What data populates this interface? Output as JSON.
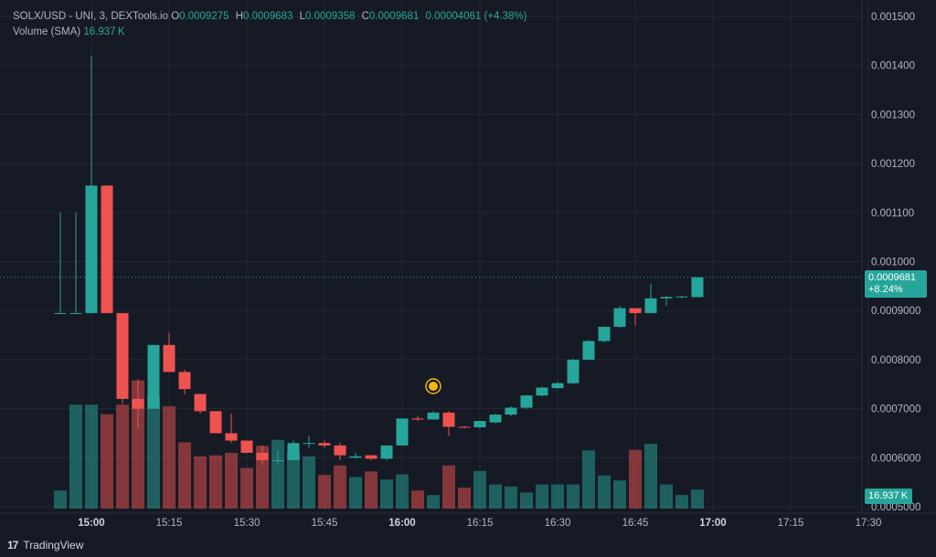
{
  "legend": {
    "symbol": "SOLX/USD - UNI, 3, DEXTools.io",
    "o_key": "O",
    "o": "0.0009275",
    "h_key": "H",
    "h": "0.0009683",
    "l_key": "L",
    "l": "0.0009358",
    "c_key": "C",
    "c": "0.0009681",
    "change": "0.00004061 (+4.38%)",
    "volume_label": "Volume (SMA)",
    "volume_value": "16.937 K"
  },
  "price_badge": {
    "price": "0.0009681",
    "change": "+8.24%"
  },
  "volume_badge": "16.937 K",
  "footer": {
    "brand": "TradingView"
  },
  "colors": {
    "up": "#26a69a",
    "down": "#ef5350",
    "background": "#161a25",
    "grid": "#242832",
    "text": "#b2b5be"
  },
  "chart_data": {
    "type": "candlestick",
    "title": "SOLX/USD - UNI, 3, DEXTools.io",
    "interval_minutes": 3,
    "y_ticks": [
      "0.0005000",
      "0.0006000",
      "0.0007000",
      "0.0008000",
      "0.0009000",
      "0.001000",
      "0.001100",
      "0.001200",
      "0.001300",
      "0.001400",
      "0.001500"
    ],
    "ylim": [
      0.0005,
      0.00152
    ],
    "x_ticks": [
      "15:00",
      "15:15",
      "15:30",
      "15:45",
      "16:00",
      "16:15",
      "16:30",
      "16:45",
      "17:00",
      "17:15",
      "17:30"
    ],
    "x_ticks_bold": [
      "15:00",
      "16:00",
      "17:00"
    ],
    "x_start_time": "14:54",
    "last_price": 0.0009681,
    "candles": [
      {
        "t": "14:54",
        "o": 0.000895,
        "h": 0.0011,
        "l": 0.000895,
        "c": 0.000895,
        "v": 3.6
      },
      {
        "t": "14:57",
        "o": 0.000895,
        "h": 0.0011,
        "l": 0.000895,
        "c": 0.000895,
        "v": 20.7
      },
      {
        "t": "15:00",
        "o": 0.000895,
        "h": 0.00142,
        "l": 0.000895,
        "c": 0.001155,
        "v": 20.7
      },
      {
        "t": "15:03",
        "o": 0.001155,
        "h": 0.001155,
        "l": 0.000895,
        "c": 0.000895,
        "v": 18.8
      },
      {
        "t": "15:06",
        "o": 0.000895,
        "h": 0.000895,
        "l": 0.00071,
        "c": 0.00072,
        "v": 20.7
      },
      {
        "t": "15:09",
        "o": 0.00072,
        "h": 0.00076,
        "l": 0.00066,
        "c": 0.0007,
        "v": 25.5
      },
      {
        "t": "15:12",
        "o": 0.0007,
        "h": 0.00083,
        "l": 0.0007,
        "c": 0.00083,
        "v": 22.4
      },
      {
        "t": "15:15",
        "o": 0.00083,
        "h": 0.000855,
        "l": 0.000775,
        "c": 0.000775,
        "v": 20.4
      },
      {
        "t": "15:18",
        "o": 0.000775,
        "h": 0.00078,
        "l": 0.00073,
        "c": 0.00074,
        "v": 13.2
      },
      {
        "t": "15:21",
        "o": 0.00073,
        "h": 0.00073,
        "l": 0.00069,
        "c": 0.000695,
        "v": 10.4
      },
      {
        "t": "15:24",
        "o": 0.000695,
        "h": 0.000695,
        "l": 0.00065,
        "c": 0.00065,
        "v": 10.6
      },
      {
        "t": "15:27",
        "o": 0.00065,
        "h": 0.00069,
        "l": 0.00063,
        "c": 0.000635,
        "v": 11.1
      },
      {
        "t": "15:30",
        "o": 0.000635,
        "h": 0.000635,
        "l": 0.00061,
        "c": 0.00061,
        "v": 8.1
      },
      {
        "t": "15:33",
        "o": 0.00061,
        "h": 0.000625,
        "l": 0.000585,
        "c": 0.000595,
        "v": 12.5
      },
      {
        "t": "15:36",
        "o": 0.000595,
        "h": 0.000615,
        "l": 0.000585,
        "c": 0.000595,
        "v": 13.7
      },
      {
        "t": "15:39",
        "o": 0.000595,
        "h": 0.000635,
        "l": 0.000595,
        "c": 0.00063,
        "v": 11.4
      },
      {
        "t": "15:42",
        "o": 0.00063,
        "h": 0.000645,
        "l": 0.00062,
        "c": 0.00063,
        "v": 10.4
      },
      {
        "t": "15:45",
        "o": 0.00063,
        "h": 0.000635,
        "l": 0.00062,
        "c": 0.000625,
        "v": 6.7
      },
      {
        "t": "15:48",
        "o": 0.000625,
        "h": 0.00063,
        "l": 0.000595,
        "c": 0.000605,
        "v": 8.6
      },
      {
        "t": "15:51",
        "o": 0.0006,
        "h": 0.00061,
        "l": 0.000598,
        "c": 0.000603,
        "v": 6.3
      },
      {
        "t": "15:54",
        "o": 0.000605,
        "h": 0.000605,
        "l": 0.000595,
        "c": 0.000598,
        "v": 7.4
      },
      {
        "t": "15:57",
        "o": 0.000598,
        "h": 0.000625,
        "l": 0.000595,
        "c": 0.000625,
        "v": 5.8
      },
      {
        "t": "16:00",
        "o": 0.000625,
        "h": 0.00068,
        "l": 0.000625,
        "c": 0.00068,
        "v": 6.8
      },
      {
        "t": "16:03",
        "o": 0.00068,
        "h": 0.000685,
        "l": 0.000675,
        "c": 0.000678,
        "v": 3.6
      },
      {
        "t": "16:06",
        "o": 0.000678,
        "h": 0.000695,
        "l": 0.000678,
        "c": 0.000692,
        "v": 2.7
      },
      {
        "t": "16:09",
        "o": 0.000692,
        "h": 0.000695,
        "l": 0.000645,
        "c": 0.000663,
        "v": 8.6
      },
      {
        "t": "16:12",
        "o": 0.000663,
        "h": 0.000665,
        "l": 0.00066,
        "c": 0.000662,
        "v": 4.2
      },
      {
        "t": "16:15",
        "o": 0.000662,
        "h": 0.000675,
        "l": 0.00066,
        "c": 0.000675,
        "v": 7.5
      },
      {
        "t": "16:18",
        "o": 0.000672,
        "h": 0.00069,
        "l": 0.00067,
        "c": 0.000688,
        "v": 4.8
      },
      {
        "t": "16:21",
        "o": 0.000688,
        "h": 0.000705,
        "l": 0.000685,
        "c": 0.000702,
        "v": 4.4
      },
      {
        "t": "16:24",
        "o": 0.000702,
        "h": 0.000728,
        "l": 0.0007,
        "c": 0.000727,
        "v": 3.2
      },
      {
        "t": "16:27",
        "o": 0.000727,
        "h": 0.000745,
        "l": 0.000725,
        "c": 0.000743,
        "v": 4.8
      },
      {
        "t": "16:30",
        "o": 0.000742,
        "h": 0.000755,
        "l": 0.00074,
        "c": 0.000752,
        "v": 4.8
      },
      {
        "t": "16:33",
        "o": 0.000752,
        "h": 0.000802,
        "l": 0.00075,
        "c": 0.0008,
        "v": 4.8
      },
      {
        "t": "16:36",
        "o": 0.0008,
        "h": 0.00084,
        "l": 0.0008,
        "c": 0.000838,
        "v": 11.6
      },
      {
        "t": "16:39",
        "o": 0.000838,
        "h": 0.000868,
        "l": 0.000835,
        "c": 0.000867,
        "v": 6.6
      },
      {
        "t": "16:42",
        "o": 0.000867,
        "h": 0.00091,
        "l": 0.000865,
        "c": 0.000905,
        "v": 5.6
      },
      {
        "t": "16:45",
        "o": 0.000905,
        "h": 0.000905,
        "l": 0.00087,
        "c": 0.000895,
        "v": 11.7
      },
      {
        "t": "16:48",
        "o": 0.000895,
        "h": 0.000955,
        "l": 0.000895,
        "c": 0.000925,
        "v": 12.9
      },
      {
        "t": "16:51",
        "o": 0.000925,
        "h": 0.00093,
        "l": 0.00091,
        "c": 0.000928,
        "v": 4.8
      },
      {
        "t": "16:54",
        "o": 0.000928,
        "h": 0.00093,
        "l": 0.000925,
        "c": 0.000929,
        "v": 2.7
      },
      {
        "t": "16:57",
        "o": 0.0009275,
        "h": 0.0009683,
        "l": 0.0009358,
        "c": 0.0009681,
        "v": 3.8
      }
    ]
  }
}
